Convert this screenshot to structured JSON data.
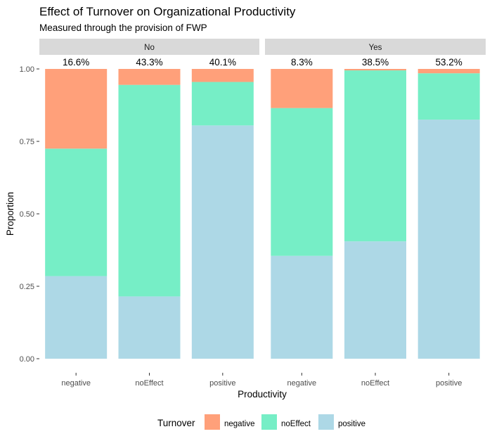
{
  "chart_data": {
    "type": "bar",
    "stacked": true,
    "title": "Effect of Turnover on Organizational Productivity",
    "subtitle": "Measured through the provision of FWP",
    "xlabel": "Productivity",
    "ylabel": "Proportion",
    "ylim": [
      0,
      1
    ],
    "yticks": [
      "0.00",
      "0.25",
      "0.50",
      "0.75",
      "1.00"
    ],
    "categories": [
      "negative",
      "noEffect",
      "positive"
    ],
    "legend": {
      "title": "Turnover",
      "position": "bottom",
      "entries": [
        "negative",
        "noEffect",
        "positive"
      ]
    },
    "colors": {
      "negative": "#FFA07A",
      "noEffect": "#76EEC6",
      "positive": "#ADD8E6"
    },
    "facets": [
      {
        "label": "No",
        "labels": [
          "16.6%",
          "43.3%",
          "40.1%"
        ],
        "series": [
          {
            "name": "positive",
            "values": [
              0.285,
              0.215,
              0.805
            ]
          },
          {
            "name": "noEffect",
            "values": [
              0.44,
              0.73,
              0.15
            ]
          },
          {
            "name": "negative",
            "values": [
              0.275,
              0.055,
              0.045
            ]
          }
        ]
      },
      {
        "label": "Yes",
        "labels": [
          "8.3%",
          "38.5%",
          "53.2%"
        ],
        "series": [
          {
            "name": "positive",
            "values": [
              0.355,
              0.405,
              0.825
            ]
          },
          {
            "name": "noEffect",
            "values": [
              0.51,
              0.59,
              0.16
            ]
          },
          {
            "name": "negative",
            "values": [
              0.135,
              0.005,
              0.015
            ]
          }
        ]
      }
    ]
  }
}
